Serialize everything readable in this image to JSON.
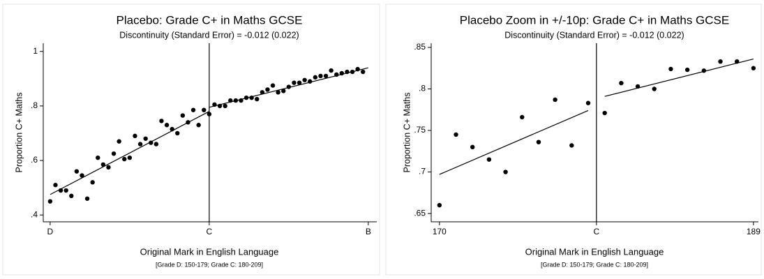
{
  "chart_data": [
    {
      "type": "scatter",
      "title": "Placebo: Grade C+ in Maths GCSE",
      "subtitle": "Discontinuity (Standard Error) = -0.012 (0.022)",
      "x_label": "Original Mark in English Language",
      "x_note": "[Grade D: 150-179; Grade C: 180-209]",
      "y_label": "Proportion C+ Maths",
      "color": "#000000",
      "x": [
        150,
        151,
        152,
        153,
        154,
        155,
        156,
        157,
        158,
        159,
        160,
        161,
        162,
        163,
        164,
        165,
        166,
        167,
        168,
        169,
        170,
        171,
        172,
        173,
        174,
        175,
        176,
        177,
        178,
        179,
        180,
        181,
        182,
        183,
        184,
        185,
        186,
        187,
        188,
        189,
        190,
        191,
        192,
        193,
        194,
        195,
        196,
        197,
        198,
        199,
        200,
        201,
        202,
        203,
        204,
        205,
        206,
        207,
        208,
        209
      ],
      "values": [
        0.45,
        0.51,
        0.49,
        0.49,
        0.47,
        0.56,
        0.545,
        0.46,
        0.52,
        0.61,
        0.585,
        0.575,
        0.625,
        0.67,
        0.605,
        0.61,
        0.69,
        0.66,
        0.68,
        0.665,
        0.66,
        0.745,
        0.73,
        0.715,
        0.7,
        0.765,
        0.74,
        0.785,
        0.73,
        0.785,
        0.77,
        0.805,
        0.8,
        0.8,
        0.82,
        0.82,
        0.82,
        0.83,
        0.83,
        0.825,
        0.85,
        0.86,
        0.875,
        0.85,
        0.855,
        0.87,
        0.885,
        0.885,
        0.895,
        0.89,
        0.905,
        0.91,
        0.91,
        0.93,
        0.915,
        0.92,
        0.925,
        0.925,
        0.935,
        0.925
      ],
      "fit_lines": [
        {
          "x": [
            150,
            180
          ],
          "values": [
            0.475,
            0.78
          ]
        },
        {
          "x": [
            180,
            210
          ],
          "values": [
            0.795,
            0.94
          ]
        }
      ],
      "cutoff": 180,
      "xlim": [
        148.7,
        211.6
      ],
      "xticks": [
        {
          "value": 150,
          "label": "D"
        },
        {
          "value": 180,
          "label": "C"
        },
        {
          "value": 210,
          "label": "B"
        }
      ],
      "ylim": [
        0.375,
        1.03
      ],
      "yticks": [
        {
          "value": 0.4,
          "label": ".4"
        },
        {
          "value": 0.6,
          "label": ".6"
        },
        {
          "value": 0.8,
          "label": ".8"
        },
        1
      ]
    },
    {
      "type": "scatter",
      "title": "Placebo Zoom in +/-10p: Grade C+ in Maths GCSE",
      "subtitle": "Discontinuity (Standard Error) = -0.012 (0.022)",
      "x_label": "Original Mark in English Language",
      "x_note": "[Grade D: 150-179; Grade C: 180-209]",
      "y_label": "Proportion C+ Maths",
      "color": "#000000",
      "x": [
        170,
        171,
        172,
        173,
        174,
        175,
        176,
        177,
        178,
        179,
        180,
        181,
        182,
        183,
        184,
        185,
        186,
        187,
        188,
        189
      ],
      "values": [
        0.66,
        0.745,
        0.73,
        0.715,
        0.7,
        0.766,
        0.736,
        0.787,
        0.732,
        0.783,
        0.771,
        0.807,
        0.803,
        0.8,
        0.824,
        0.823,
        0.822,
        0.833,
        0.833,
        0.825
      ],
      "fit_lines": [
        {
          "x": [
            170,
            179
          ],
          "values": [
            0.697,
            0.774
          ]
        },
        {
          "x": [
            180,
            189
          ],
          "values": [
            0.791,
            0.836
          ]
        }
      ],
      "cutoff": 179.5,
      "xlim": [
        169.5,
        189.3
      ],
      "xticks": [
        170,
        {
          "value": 179.5,
          "label": "C"
        },
        189
      ],
      "ylim": [
        0.64,
        0.855
      ],
      "yticks": [
        {
          "value": 0.65,
          "label": ".65"
        },
        {
          "value": 0.7,
          "label": ".7"
        },
        {
          "value": 0.75,
          "label": ".75"
        },
        {
          "value": 0.8,
          "label": ".8"
        },
        {
          "value": 0.85,
          "label": ".85"
        }
      ]
    }
  ]
}
